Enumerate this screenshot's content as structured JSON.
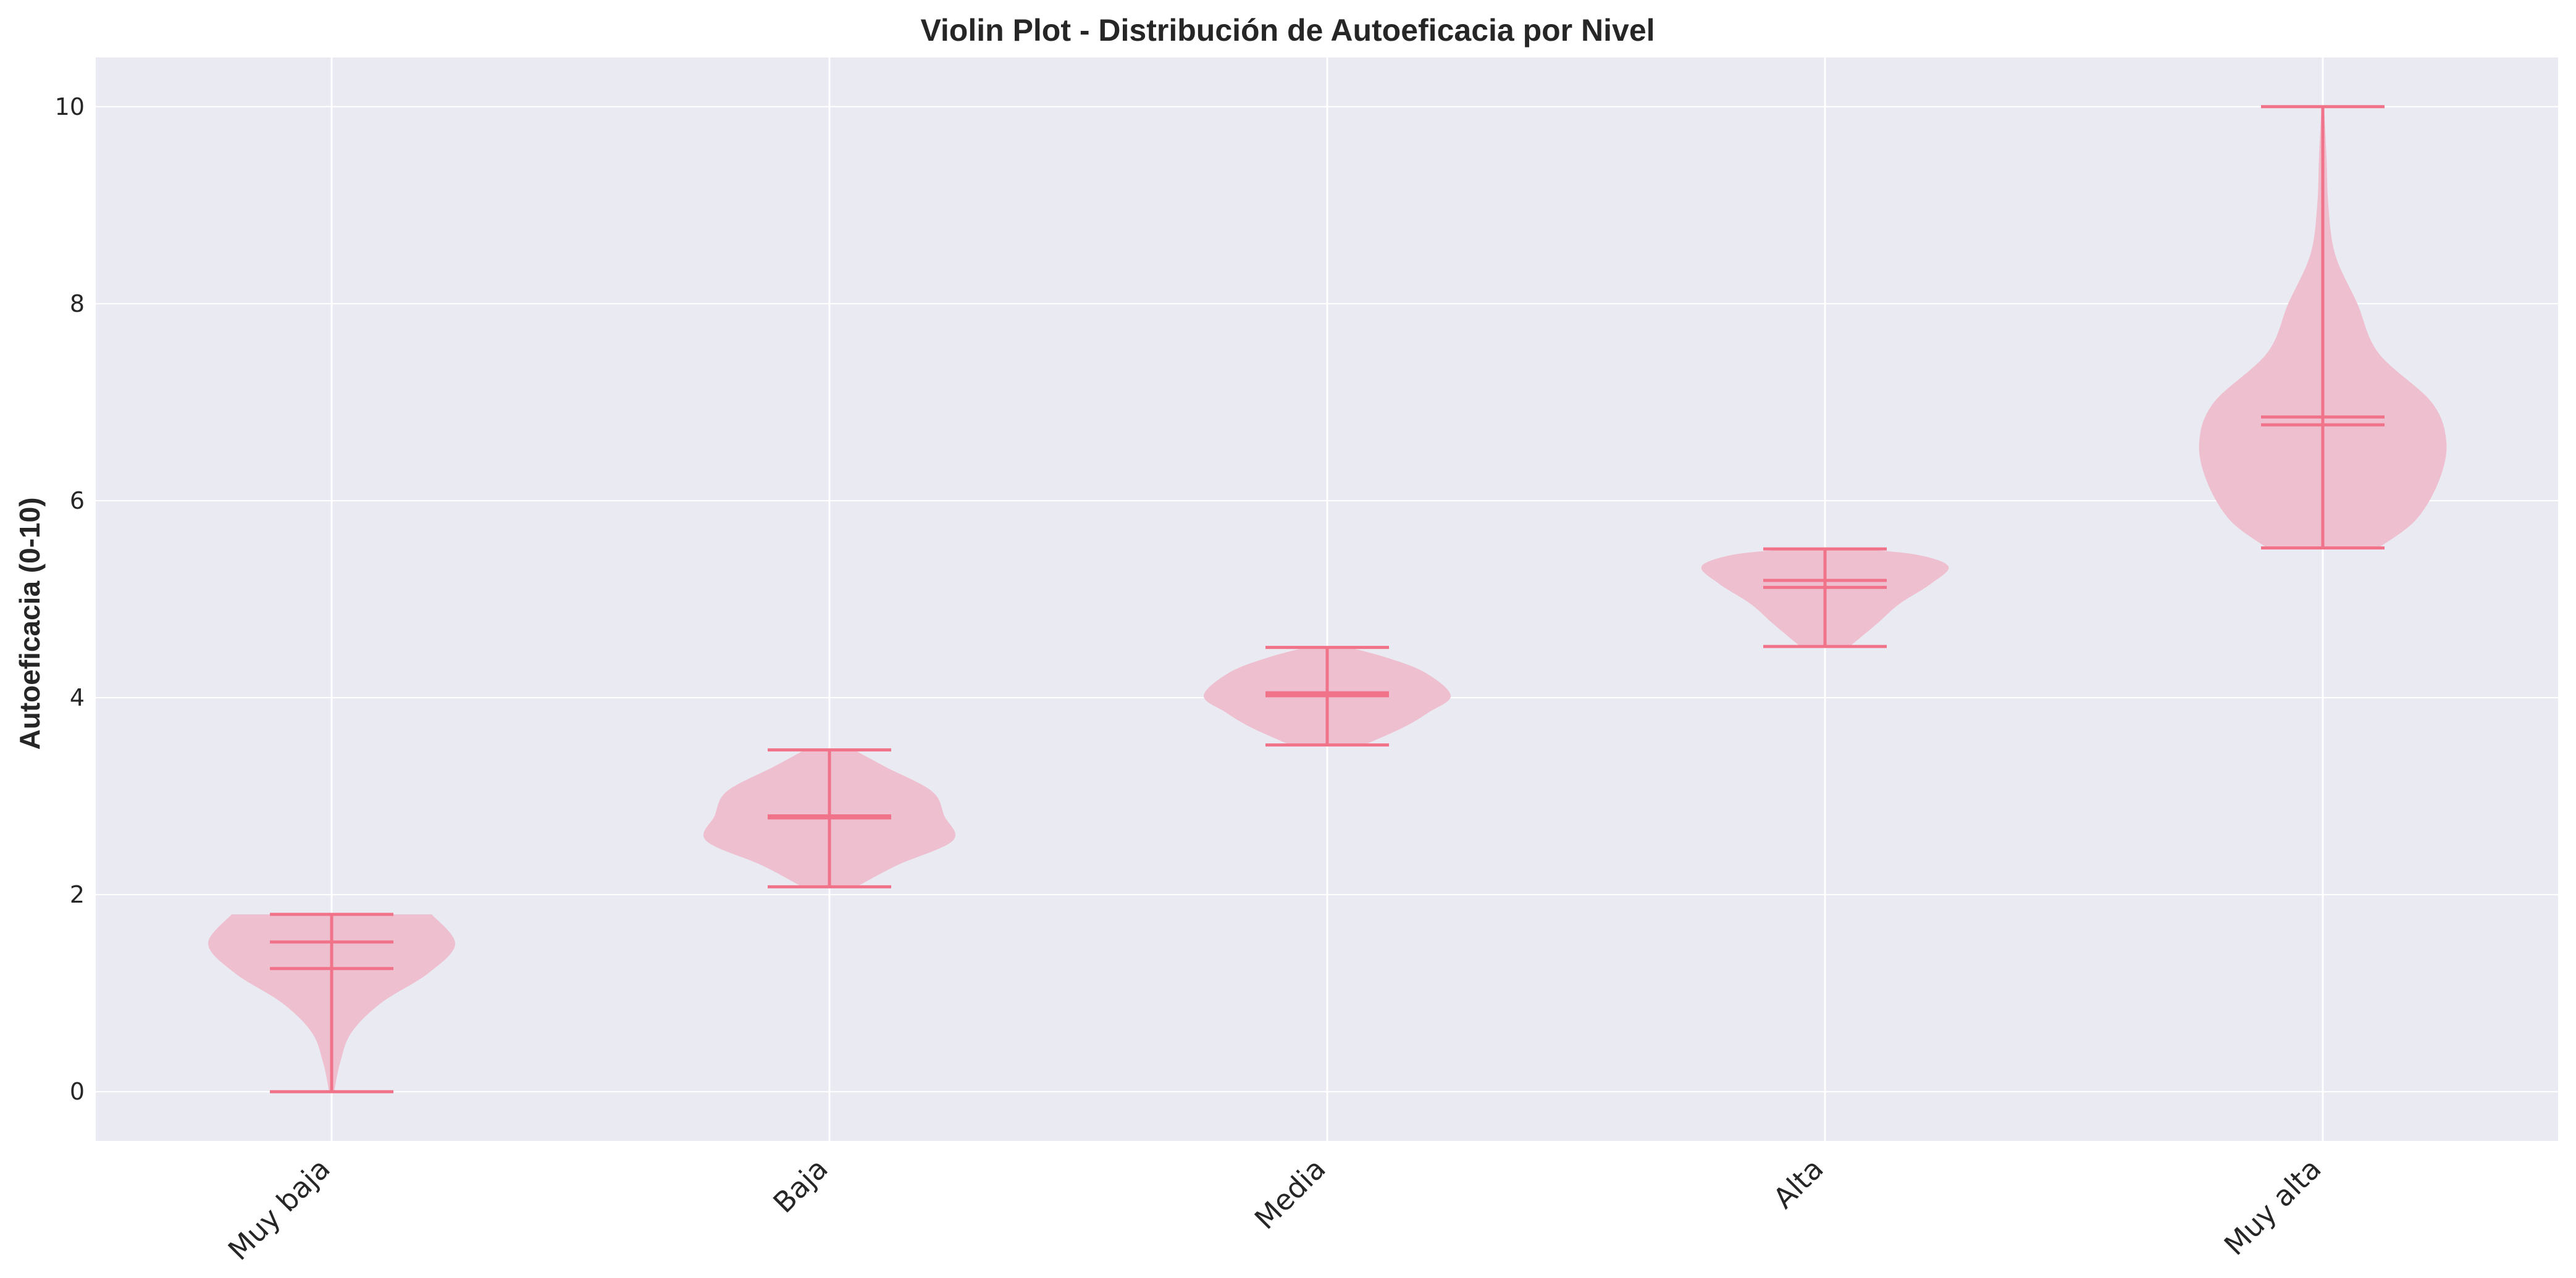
{
  "chart_data": {
    "type": "violin",
    "title": "Violin Plot - Distribución de Autoeficacia por Nivel",
    "xlabel": "",
    "ylabel": "Autoeficacia (0-10)",
    "ylim": [
      -0.5,
      10.5
    ],
    "yticks": [
      0,
      2,
      4,
      6,
      8,
      10
    ],
    "grid": true,
    "colors": {
      "plot_bg": "#eaeaf2",
      "grid": "#ffffff",
      "violin_fill": "#eebfcf",
      "violin_line": "#f0738a",
      "text": "#262626"
    },
    "categories": [
      "Muy baja",
      "Baja",
      "Media",
      "Alta",
      "Muy alta"
    ],
    "violins": [
      {
        "category": "Muy baja",
        "min": 0.0,
        "max": 1.8,
        "mean": 1.52,
        "median": 1.25,
        "density": [
          [
            0.0,
            0.02
          ],
          [
            0.3,
            0.07
          ],
          [
            0.6,
            0.16
          ],
          [
            0.9,
            0.4
          ],
          [
            1.2,
            0.78
          ],
          [
            1.5,
            1.0
          ],
          [
            1.8,
            0.81
          ]
        ]
      },
      {
        "category": "Baja",
        "min": 2.08,
        "max": 3.47,
        "mean": 2.8,
        "median": 2.78,
        "density": [
          [
            2.08,
            0.22
          ],
          [
            2.3,
            0.55
          ],
          [
            2.55,
            1.0
          ],
          [
            2.8,
            0.93
          ],
          [
            3.05,
            0.83
          ],
          [
            3.3,
            0.45
          ],
          [
            3.47,
            0.2
          ]
        ]
      },
      {
        "category": "Media",
        "min": 3.52,
        "max": 4.51,
        "mean": 4.05,
        "median": 4.02,
        "density": [
          [
            3.52,
            0.3
          ],
          [
            3.7,
            0.62
          ],
          [
            3.85,
            0.82
          ],
          [
            4.02,
            1.0
          ],
          [
            4.25,
            0.8
          ],
          [
            4.4,
            0.5
          ],
          [
            4.51,
            0.18
          ]
        ]
      },
      {
        "category": "Alta",
        "min": 4.52,
        "max": 5.51,
        "mean": 5.19,
        "median": 5.12,
        "density": [
          [
            4.52,
            0.2
          ],
          [
            4.75,
            0.42
          ],
          [
            4.95,
            0.6
          ],
          [
            5.15,
            0.85
          ],
          [
            5.33,
            1.0
          ],
          [
            5.45,
            0.75
          ],
          [
            5.51,
            0.28
          ]
        ]
      },
      {
        "category": "Muy alta",
        "min": 5.52,
        "max": 10.0,
        "mean": 6.85,
        "median": 6.77,
        "density": [
          [
            5.52,
            0.45
          ],
          [
            5.8,
            0.75
          ],
          [
            6.2,
            0.94
          ],
          [
            6.6,
            1.0
          ],
          [
            7.0,
            0.88
          ],
          [
            7.5,
            0.45
          ],
          [
            8.0,
            0.28
          ],
          [
            8.5,
            0.1
          ],
          [
            9.0,
            0.045
          ],
          [
            9.5,
            0.03
          ],
          [
            10.0,
            0.01
          ]
        ]
      }
    ]
  }
}
